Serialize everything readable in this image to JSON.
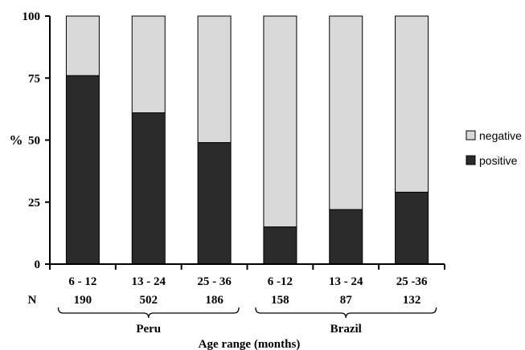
{
  "chart_data": {
    "type": "bar",
    "stacked": true,
    "percent": true,
    "ylabel": "%",
    "xlabel": "Age range (months)",
    "ylim": [
      0,
      100
    ],
    "yticks": [
      0,
      25,
      50,
      75,
      100
    ],
    "categories": [
      "6 - 12",
      "13 - 24",
      "25 - 36",
      "6 -12",
      "13 - 24",
      "25 -36"
    ],
    "n_label": "N",
    "n_values": [
      "190",
      "502",
      "186",
      "158",
      "87",
      "132"
    ],
    "groups": [
      {
        "label": "Peru",
        "indices": [
          0,
          1,
          2
        ]
      },
      {
        "label": "Brazil",
        "indices": [
          3,
          4,
          5
        ]
      }
    ],
    "series": [
      {
        "name": "positive",
        "color": "#2b2b2b",
        "values": [
          76,
          61,
          49,
          15,
          22,
          29
        ]
      },
      {
        "name": "negative",
        "color": "#d9d9d9",
        "values": [
          24,
          39,
          51,
          85,
          78,
          71
        ]
      }
    ],
    "legend": {
      "placement": "right",
      "entries": [
        {
          "label": "negative",
          "color": "#d9d9d9"
        },
        {
          "label": "positive",
          "color": "#2b2b2b"
        }
      ]
    },
    "grid": false
  }
}
